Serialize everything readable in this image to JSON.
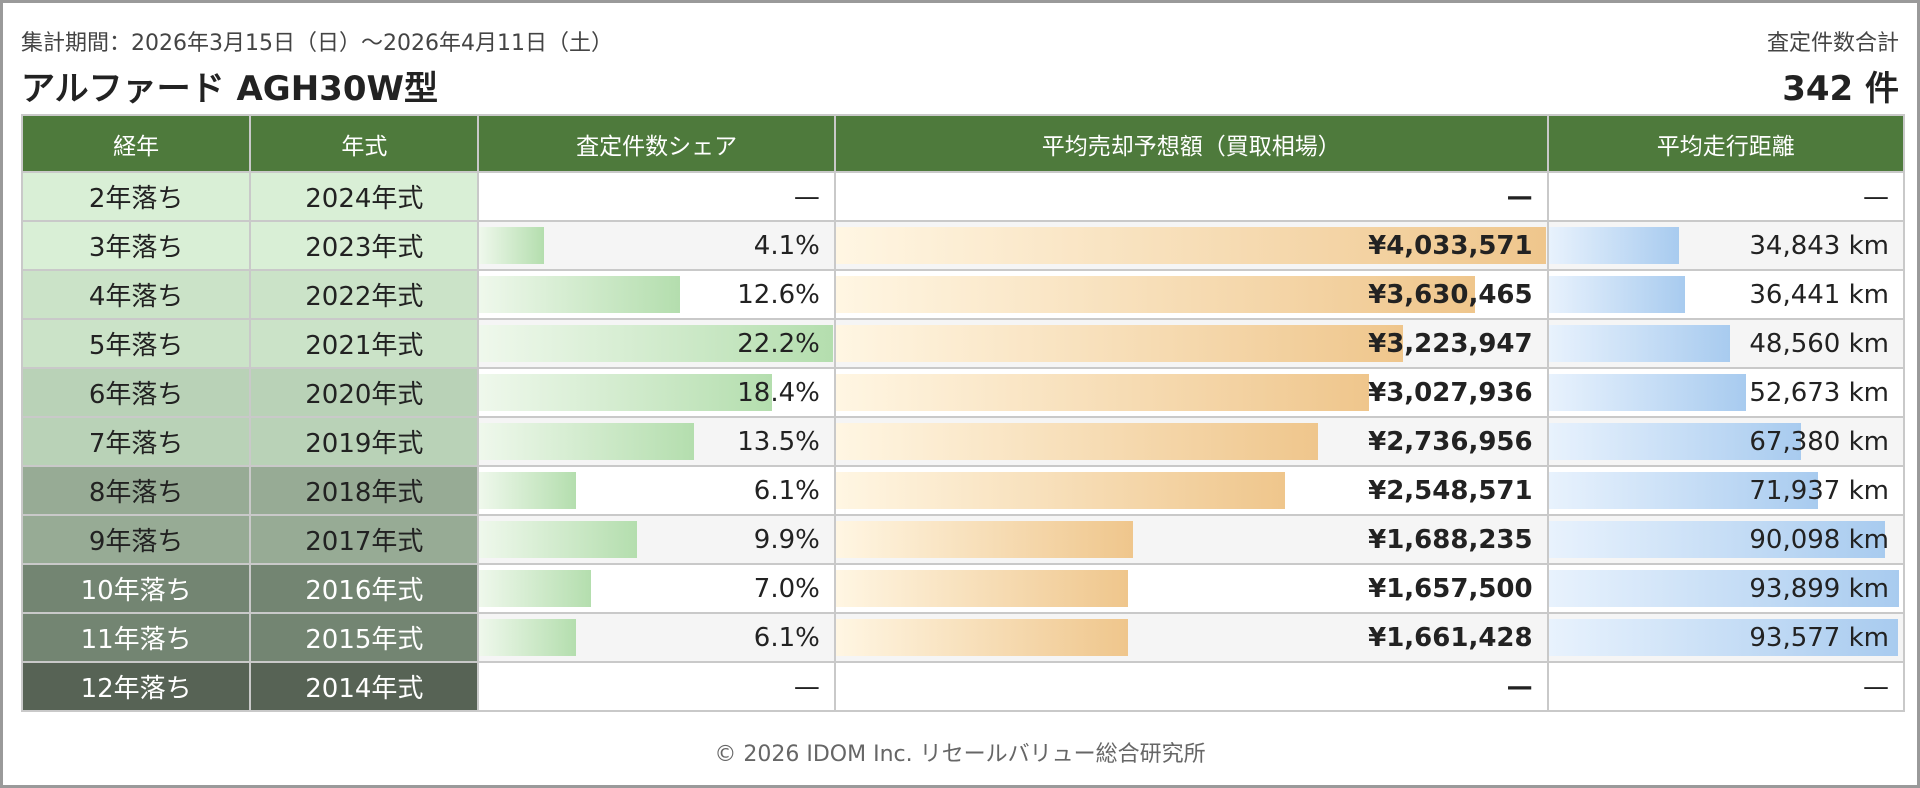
{
  "header": {
    "period": "集計期間：2026年3月15日（日）～2026年4月11日（土）",
    "model": "アルファード AGH30W型",
    "total_label": "査定件数合計",
    "total": "342 件"
  },
  "footer": "© 2026 IDOM Inc. リセールバリュー総合研究所",
  "colors": {
    "header_green": "#4e7a3c",
    "share_bar": "#b4deae",
    "price_bar": "#efc68c",
    "km_bar": "#a8cbef"
  },
  "chart_data": {
    "type": "table",
    "title": "アルファード AGH30W型",
    "columns": [
      "経年",
      "年式",
      "査定件数シェア",
      "平均売却予想額（買取相場）",
      "平均走行距離"
    ],
    "share_max": 22.2,
    "price_max": 4033571,
    "km_max": 93899,
    "rows": [
      {
        "age": "2年落ち",
        "year": "2024年式",
        "share": null,
        "share_label": "—",
        "price": null,
        "price_label": "—",
        "km": null,
        "km_label": "—",
        "age_bg": "#d9efd6",
        "year_bg": "#d9efd6",
        "age_color": "#222222"
      },
      {
        "age": "3年落ち",
        "year": "2023年式",
        "share": 4.1,
        "share_label": "4.1%",
        "price": 4033571,
        "price_label": "¥4,033,571",
        "km": 34843,
        "km_label": "34,843 km",
        "age_bg": "#d9efd6",
        "year_bg": "#d9efd6",
        "age_color": "#222222"
      },
      {
        "age": "4年落ち",
        "year": "2022年式",
        "share": 12.6,
        "share_label": "12.6%",
        "price": 3630465,
        "price_label": "¥3,630,465",
        "km": 36441,
        "km_label": "36,441 km",
        "age_bg": "#cbe3c8",
        "year_bg": "#cbe3c8",
        "age_color": "#222222"
      },
      {
        "age": "5年落ち",
        "year": "2021年式",
        "share": 22.2,
        "share_label": "22.2%",
        "price": 3223947,
        "price_label": "¥3,223,947",
        "km": 48560,
        "km_label": "48,560 km",
        "age_bg": "#cbe3c8",
        "year_bg": "#cbe3c8",
        "age_color": "#222222"
      },
      {
        "age": "6年落ち",
        "year": "2020年式",
        "share": 18.4,
        "share_label": "18.4%",
        "price": 3027936,
        "price_label": "¥3,027,936",
        "km": 52673,
        "km_label": "52,673 km",
        "age_bg": "#b9d2b7",
        "year_bg": "#b9d2b7",
        "age_color": "#222222"
      },
      {
        "age": "7年落ち",
        "year": "2019年式",
        "share": 13.5,
        "share_label": "13.5%",
        "price": 2736956,
        "price_label": "¥2,736,956",
        "km": 67380,
        "km_label": "67,380 km",
        "age_bg": "#b9d2b7",
        "year_bg": "#b9d2b7",
        "age_color": "#222222"
      },
      {
        "age": "8年落ち",
        "year": "2018年式",
        "share": 6.1,
        "share_label": "6.1%",
        "price": 2548571,
        "price_label": "¥2,548,571",
        "km": 71937,
        "km_label": "71,937 km",
        "age_bg": "#97ab95",
        "year_bg": "#97ab95",
        "age_color": "#222222"
      },
      {
        "age": "9年落ち",
        "year": "2017年式",
        "share": 9.9,
        "share_label": "9.9%",
        "price": 1688235,
        "price_label": "¥1,688,235",
        "km": 90098,
        "km_label": "90,098 km",
        "age_bg": "#97ab95",
        "year_bg": "#97ab95",
        "age_color": "#222222"
      },
      {
        "age": "10年落ち",
        "year": "2016年式",
        "share": 7.0,
        "share_label": "7.0%",
        "price": 1657500,
        "price_label": "¥1,657,500",
        "km": 93899,
        "km_label": "93,899 km",
        "age_bg": "#738572",
        "year_bg": "#738572",
        "age_color": "#ffffff"
      },
      {
        "age": "11年落ち",
        "year": "2015年式",
        "share": 6.1,
        "share_label": "6.1%",
        "price": 1661428,
        "price_label": "¥1,661,428",
        "km": 93577,
        "km_label": "93,577 km",
        "age_bg": "#738572",
        "year_bg": "#738572",
        "age_color": "#ffffff"
      },
      {
        "age": "12年落ち",
        "year": "2014年式",
        "share": null,
        "share_label": "—",
        "price": null,
        "price_label": "—",
        "km": null,
        "km_label": "—",
        "age_bg": "#576355",
        "year_bg": "#576355",
        "age_color": "#ffffff"
      }
    ]
  }
}
